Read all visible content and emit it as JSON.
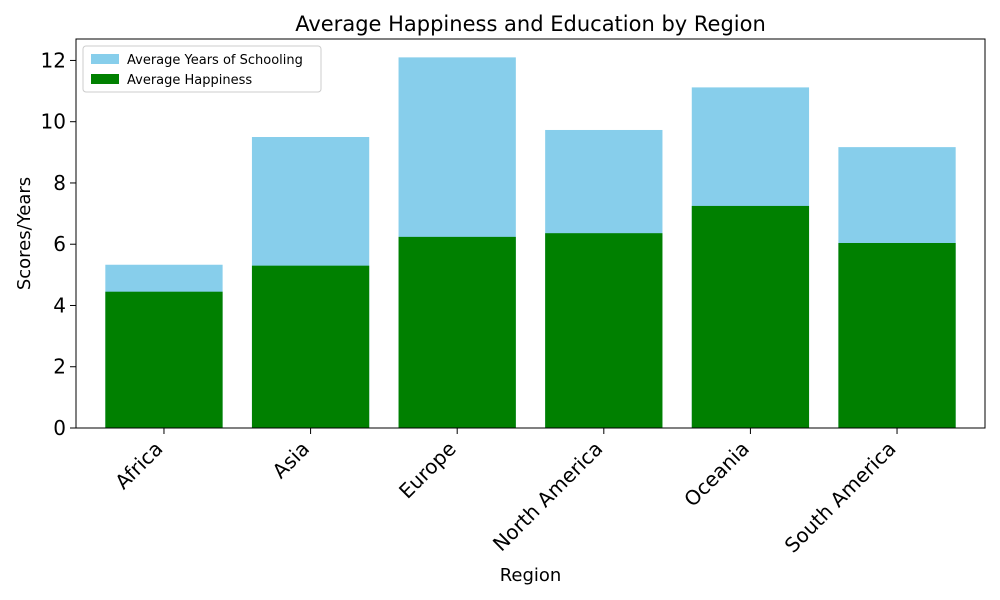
{
  "chart_data": {
    "type": "bar",
    "title": "Average Happiness and Education by Region",
    "xlabel": "Region",
    "ylabel": "Scores/Years",
    "categories": [
      "Africa",
      "Asia",
      "Europe",
      "North America",
      "Oceania",
      "South America"
    ],
    "series": [
      {
        "name": "Average Years of Schooling",
        "color": "#87ceeb",
        "values": [
          5.33,
          9.5,
          12.1,
          9.73,
          11.12,
          9.17
        ]
      },
      {
        "name": "Average Happiness",
        "color": "#008000",
        "values": [
          4.45,
          5.3,
          6.24,
          6.36,
          7.25,
          6.04
        ]
      }
    ],
    "ylim": [
      0,
      12.7
    ],
    "yticks": [
      0,
      2,
      4,
      6,
      8,
      10,
      12
    ],
    "grid": false,
    "legend": "top-left",
    "overlay": true
  }
}
